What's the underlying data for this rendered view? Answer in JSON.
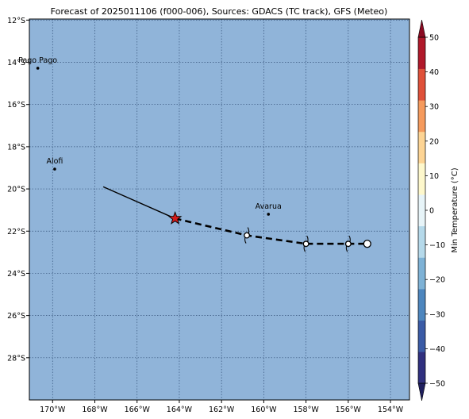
{
  "title": "Forecast of 2025011106 (f000-006), Sources: GDACS (TC track), GFS (Meteo)",
  "map": {
    "lon_range": [
      -171.1,
      -153.1
    ],
    "lat_range": [
      -30.0,
      -11.95
    ],
    "ocean_color": "#90b4d9",
    "grid": true,
    "grid_color": "#34527a",
    "lon_ticks": [
      {
        "value": -170,
        "label": "170°W"
      },
      {
        "value": -168,
        "label": "168°W"
      },
      {
        "value": -166,
        "label": "166°W"
      },
      {
        "value": -164,
        "label": "164°W"
      },
      {
        "value": -162,
        "label": "162°W"
      },
      {
        "value": -160,
        "label": "160°W"
      },
      {
        "value": -158,
        "label": "158°W"
      },
      {
        "value": -156,
        "label": "156°W"
      },
      {
        "value": -154,
        "label": "154°W"
      }
    ],
    "lat_ticks": [
      {
        "value": -12,
        "label": "12°S"
      },
      {
        "value": -14,
        "label": "14°S"
      },
      {
        "value": -16,
        "label": "16°S"
      },
      {
        "value": -18,
        "label": "18°S"
      },
      {
        "value": -20,
        "label": "20°S"
      },
      {
        "value": -22,
        "label": "22°S"
      },
      {
        "value": -24,
        "label": "24°S"
      },
      {
        "value": -26,
        "label": "26°S"
      },
      {
        "value": -28,
        "label": "28°S"
      }
    ]
  },
  "cities": [
    {
      "name": "Pago Pago",
      "lon": -170.7,
      "lat": -14.28
    },
    {
      "name": "Alofi",
      "lon": -169.9,
      "lat": -19.06
    },
    {
      "name": "Avarua",
      "lon": -159.78,
      "lat": -21.2
    }
  ],
  "track": {
    "past": [
      [
        -167.6,
        -19.9
      ],
      [
        -164.2,
        -21.4
      ]
    ],
    "current": [
      -164.2,
      -21.4
    ],
    "forecast": [
      [
        -164.2,
        -21.4
      ],
      [
        -160.8,
        -22.2
      ],
      [
        -158.0,
        -22.6
      ],
      [
        -156.0,
        -22.6
      ],
      [
        -155.1,
        -22.6
      ]
    ],
    "forecast_points": [
      {
        "lon": -160.8,
        "lat": -22.2,
        "symbol": "cyclone"
      },
      {
        "lon": -158.0,
        "lat": -22.6,
        "symbol": "cyclone"
      },
      {
        "lon": -156.0,
        "lat": -22.6,
        "symbol": "cyclone"
      },
      {
        "lon": -155.1,
        "lat": -22.6,
        "symbol": "low"
      }
    ],
    "star_color": "#d11a1a"
  },
  "colorbar": {
    "label": "Min Temperature (°C)",
    "min": -50,
    "max": 50,
    "ticks": [
      -50,
      -40,
      -30,
      -20,
      -10,
      0,
      10,
      20,
      30,
      40,
      50
    ],
    "colors": [
      "#30307f",
      "#3a5ba6",
      "#4d86be",
      "#7eb2d6",
      "#b5d9ea",
      "#e7f4f8",
      "#fef8cc",
      "#fdd494",
      "#f59a5d",
      "#df5039",
      "#b0182a"
    ],
    "extend_low_color": "#1f1f5e",
    "extend_high_color": "#8b0a22"
  }
}
